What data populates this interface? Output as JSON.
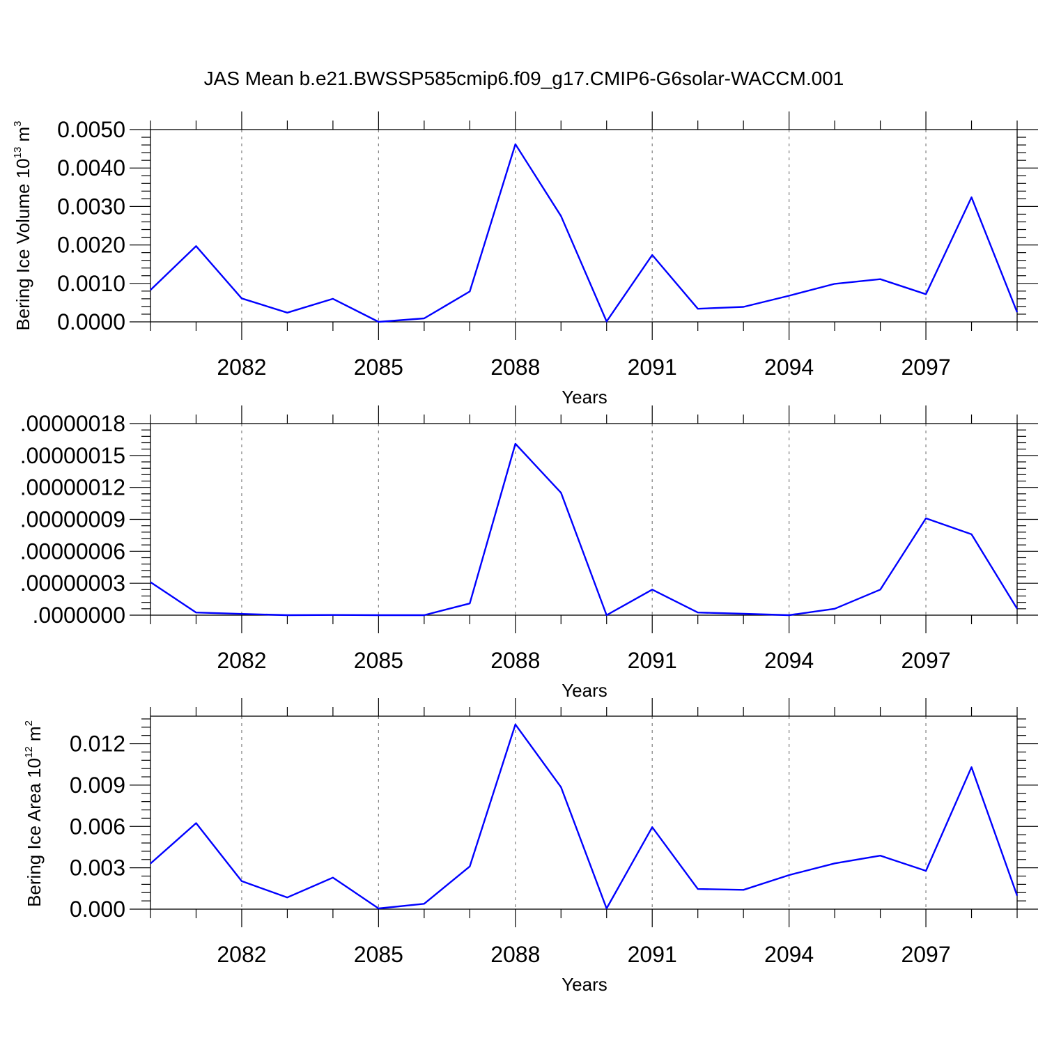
{
  "figure": {
    "title": "JAS Mean b.e21.BWSSP585cmip6.f09_g17.CMIP6-G6solar-WACCM.001"
  },
  "colors": {
    "line": "#0000ff",
    "axis": "#000000",
    "grid": "#7f7f7f"
  },
  "chart_data": [
    {
      "type": "line",
      "title": "",
      "xlabel": "Years",
      "ylabel": {
        "text": "Bering Ice Volume 10",
        "sup": "13",
        "unit": " m",
        "unit_sup": "3"
      },
      "x": [
        2080,
        2081,
        2082,
        2083,
        2084,
        2085,
        2086,
        2087,
        2088,
        2089,
        2090,
        2091,
        2092,
        2093,
        2094,
        2095,
        2096,
        2097,
        2098,
        2099
      ],
      "series": [
        {
          "values": [
            0.00083,
            0.00197,
            0.00061,
            0.00024,
            0.0006,
            0.0,
            9e-05,
            0.00079,
            0.00462,
            0.00275,
            1e-05,
            0.00174,
            0.00034,
            0.00039,
            0.00068,
            0.00099,
            0.00111,
            0.00072,
            0.00324,
            0.00025
          ]
        }
      ],
      "xticks": [
        2082,
        2085,
        2088,
        2091,
        2094,
        2097
      ],
      "xtick_labels": [
        "2082",
        "2085",
        "2088",
        "2091",
        "2094",
        "2097"
      ],
      "xlim": [
        2080,
        2099
      ],
      "yticks": [
        0.0,
        0.001,
        0.002,
        0.003,
        0.004,
        0.005
      ],
      "ytick_labels": [
        "0.0000",
        "0.0010",
        "0.0020",
        "0.0030",
        "0.0040",
        "0.0050"
      ],
      "ylim": [
        0.0,
        0.005
      ],
      "grid": "vertical dashed at major x ticks"
    },
    {
      "type": "line",
      "title": "",
      "xlabel": "Years",
      "ylabel": null,
      "x": [
        2080,
        2081,
        2082,
        2083,
        2084,
        2085,
        2086,
        2087,
        2088,
        2089,
        2090,
        2091,
        2092,
        2093,
        2094,
        2095,
        2096,
        2097,
        2098,
        2099
      ],
      "series": [
        {
          "values": [
            3.1e-08,
            2.5e-09,
            1.2e-09,
            0.0,
            2e-10,
            0.0,
            0.0,
            1.1e-08,
            1.61e-07,
            1.15e-07,
            0.0,
            2.4e-08,
            2.5e-09,
            1.3e-09,
            0.0,
            6e-09,
            2.4e-08,
            9.1e-08,
            7.6e-08,
            6e-09
          ]
        }
      ],
      "xticks": [
        2082,
        2085,
        2088,
        2091,
        2094,
        2097
      ],
      "xtick_labels": [
        "2082",
        "2085",
        "2088",
        "2091",
        "2094",
        "2097"
      ],
      "xlim": [
        2080,
        2099
      ],
      "yticks": [
        0.0,
        3e-08,
        6e-08,
        9e-08,
        1.2e-07,
        1.5e-07,
        1.8e-07
      ],
      "ytick_labels": [
        ".0000000",
        ".00000003",
        ".00000006",
        ".00000009",
        ".00000012",
        ".00000015",
        ".00000018"
      ],
      "ylim": [
        0.0,
        1.8e-07
      ],
      "grid": "vertical dashed at major x ticks"
    },
    {
      "type": "line",
      "title": "",
      "xlabel": "Years",
      "ylabel": {
        "text": "Bering Ice Area 10",
        "sup": "12",
        "unit": " m",
        "unit_sup": "2"
      },
      "x": [
        2080,
        2081,
        2082,
        2083,
        2084,
        2085,
        2086,
        2087,
        2088,
        2089,
        2090,
        2091,
        2092,
        2093,
        2094,
        2095,
        2096,
        2097,
        2098,
        2099
      ],
      "series": [
        {
          "values": [
            0.00331,
            0.00624,
            0.00203,
            0.00085,
            0.00229,
            5e-05,
            0.00039,
            0.0031,
            0.0134,
            0.00885,
            5e-05,
            0.00595,
            0.00146,
            0.0014,
            0.00247,
            0.00332,
            0.00388,
            0.00278,
            0.0103,
            0.00098
          ]
        }
      ],
      "xticks": [
        2082,
        2085,
        2088,
        2091,
        2094,
        2097
      ],
      "xtick_labels": [
        "2082",
        "2085",
        "2088",
        "2091",
        "2094",
        "2097"
      ],
      "xlim": [
        2080,
        2099
      ],
      "yticks": [
        0.0,
        0.003,
        0.006,
        0.009,
        0.012
      ],
      "ytick_labels": [
        "0.000",
        "0.003",
        "0.006",
        "0.009",
        "0.012"
      ],
      "ylim": [
        0.0,
        0.014
      ],
      "grid": "vertical dashed at major x ticks"
    }
  ]
}
